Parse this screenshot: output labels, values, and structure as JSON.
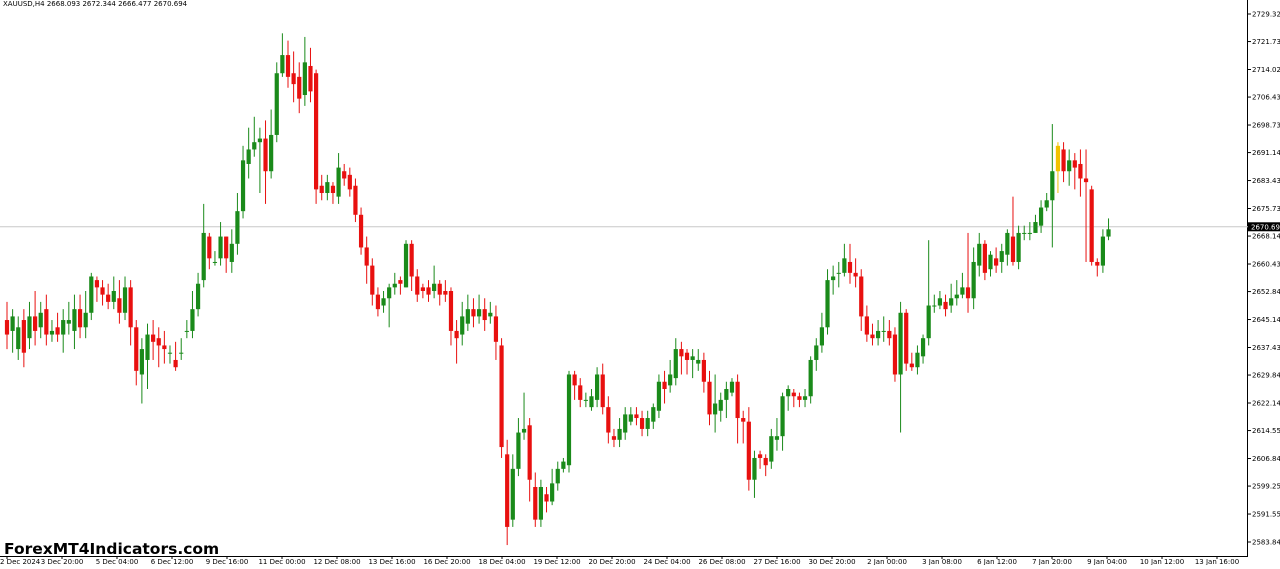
{
  "symbol_header": "XAUUSD,H4  2668.093 2672.344 2666.477 2670.694",
  "current_price_label": "2670.694",
  "watermark": "ForexMT4Indicators.com",
  "colors": {
    "background": "#ffffff",
    "bull": "#1a8a1a",
    "bear": "#e8100f",
    "highlight": "#f2c200",
    "price_line": "#c8c8c8",
    "price_tag_bg": "#000000"
  },
  "chart_data": {
    "type": "candlestick",
    "title": "",
    "ylim": [
      2580.0,
      2732.5
    ],
    "current_price": 2670.694,
    "y_ticks": [
      "2729.320",
      "2721.730",
      "2714.025",
      "2706.435",
      "2698.730",
      "2691.140",
      "2683.435",
      "2675.730",
      "2668.140",
      "2660.435",
      "2652.845",
      "2645.140",
      "2637.435",
      "2629.845",
      "2622.140",
      "2614.550",
      "2606.845",
      "2599.255",
      "2591.550",
      "2583.845"
    ],
    "x_ticks": [
      "2 Dec 2024",
      "3 Dec 20:00",
      "5 Dec 04:00",
      "6 Dec 12:00",
      "9 Dec 16:00",
      "11 Dec 00:00",
      "12 Dec 08:00",
      "13 Dec 16:00",
      "16 Dec 20:00",
      "18 Dec 04:00",
      "19 Dec 12:00",
      "20 Dec 20:00",
      "24 Dec 04:00",
      "26 Dec 08:00",
      "27 Dec 16:00",
      "30 Dec 20:00",
      "2 Jan 00:00",
      "3 Jan 08:00",
      "6 Jan 12:00",
      "7 Jan 20:00",
      "9 Jan 04:00",
      "10 Jan 12:00",
      "13 Jan 16:00"
    ],
    "candles": [
      [
        2645,
        2641,
        2650,
        2637
      ],
      [
        2642,
        2646,
        2648,
        2636
      ],
      [
        2637,
        2643,
        2646,
        2634
      ],
      [
        2645,
        2636,
        2648,
        2632
      ],
      [
        2640,
        2646,
        2650,
        2637
      ],
      [
        2646,
        2642,
        2653,
        2638
      ],
      [
        2643,
        2647,
        2650,
        2640
      ],
      [
        2648,
        2641,
        2652,
        2638
      ],
      [
        2641,
        2642,
        2645,
        2639
      ],
      [
        2643,
        2641,
        2647,
        2639
      ],
      [
        2641,
        2645,
        2648,
        2636
      ],
      [
        2644,
        2645,
        2650,
        2641
      ],
      [
        2642,
        2648,
        2652,
        2637
      ],
      [
        2648,
        2643,
        2652,
        2640
      ],
      [
        2643,
        2647,
        2653,
        2640
      ],
      [
        2647,
        2657,
        2658,
        2645
      ],
      [
        2656,
        2654,
        2657,
        2650
      ],
      [
        2654,
        2652,
        2656,
        2649
      ],
      [
        2652,
        2650,
        2655,
        2648
      ],
      [
        2650,
        2653,
        2657,
        2648
      ],
      [
        2651,
        2647,
        2656,
        2644
      ],
      [
        2647,
        2654,
        2657,
        2645
      ],
      [
        2654,
        2643,
        2656,
        2638
      ],
      [
        2643,
        2631,
        2645,
        2627
      ],
      [
        2630,
        2637,
        2640,
        2622
      ],
      [
        2634,
        2641,
        2644,
        2626
      ],
      [
        2641,
        2639,
        2645,
        2634
      ],
      [
        2640,
        2638,
        2643,
        2632
      ],
      [
        2638,
        2637,
        2642,
        2633
      ],
      [
        2636,
        2636,
        2638,
        2633
      ],
      [
        2634,
        2632,
        2639,
        2631
      ],
      [
        2636,
        2636,
        2640,
        2634
      ],
      [
        2642,
        2642,
        2645,
        2640
      ],
      [
        2642,
        2648,
        2653,
        2640
      ],
      [
        2648,
        2655,
        2658,
        2646
      ],
      [
        2656,
        2669,
        2677,
        2654
      ],
      [
        2668,
        2662,
        2669,
        2659
      ],
      [
        2661,
        2661,
        2664,
        2660
      ],
      [
        2662,
        2668,
        2672,
        2660
      ],
      [
        2668,
        2662,
        2668,
        2658
      ],
      [
        2661,
        2666,
        2670,
        2658
      ],
      [
        2666,
        2675,
        2680,
        2663
      ],
      [
        2675,
        2689,
        2693,
        2673
      ],
      [
        2688,
        2692,
        2698,
        2684
      ],
      [
        2692,
        2694,
        2701,
        2690
      ],
      [
        2694,
        2695,
        2698,
        2680
      ],
      [
        2695,
        2686,
        2700,
        2677
      ],
      [
        2686,
        2696,
        2703,
        2684
      ],
      [
        2696,
        2713,
        2716,
        2694
      ],
      [
        2713,
        2718,
        2724,
        2712
      ],
      [
        2718,
        2712,
        2722,
        2709
      ],
      [
        2713,
        2710,
        2719,
        2705
      ],
      [
        2712,
        2706,
        2716,
        2702
      ],
      [
        2707,
        2716,
        2723,
        2704
      ],
      [
        2715,
        2708,
        2720,
        2705
      ],
      [
        2713,
        2681,
        2714,
        2677
      ],
      [
        2682,
        2680,
        2685,
        2678
      ],
      [
        2680,
        2683,
        2685,
        2678
      ],
      [
        2682,
        2680,
        2683,
        2677
      ],
      [
        2679,
        2687,
        2691,
        2677
      ],
      [
        2686,
        2684,
        2688,
        2682
      ],
      [
        2685,
        2681,
        2687,
        2679
      ],
      [
        2682,
        2674,
        2684,
        2672
      ],
      [
        2674,
        2665,
        2676,
        2663
      ],
      [
        2665,
        2660,
        2668,
        2655
      ],
      [
        2660,
        2652,
        2662,
        2649
      ],
      [
        2652,
        2648,
        2654,
        2646
      ],
      [
        2649,
        2651,
        2653,
        2647
      ],
      [
        2651,
        2654,
        2655,
        2643
      ],
      [
        2654,
        2655,
        2658,
        2652
      ],
      [
        2656,
        2655,
        2657,
        2652
      ],
      [
        2654,
        2666,
        2667,
        2654
      ],
      [
        2666,
        2657,
        2667,
        2653
      ],
      [
        2657,
        2652,
        2659,
        2650
      ],
      [
        2654,
        2653,
        2655,
        2651
      ],
      [
        2654,
        2652,
        2656,
        2650
      ],
      [
        2653,
        2655,
        2660,
        2651
      ],
      [
        2655,
        2652,
        2656,
        2649
      ],
      [
        2653,
        2652,
        2656,
        2650
      ],
      [
        2653,
        2642,
        2654,
        2638
      ],
      [
        2642,
        2640,
        2645,
        2633
      ],
      [
        2641,
        2646,
        2650,
        2638
      ],
      [
        2644,
        2648,
        2652,
        2642
      ],
      [
        2648,
        2646,
        2651,
        2643
      ],
      [
        2646,
        2648,
        2652,
        2644
      ],
      [
        2648,
        2645,
        2651,
        2642
      ],
      [
        2646,
        2647,
        2650,
        2644
      ],
      [
        2646,
        2639,
        2649,
        2634
      ],
      [
        2638,
        2610,
        2640,
        2607
      ],
      [
        2608,
        2588,
        2612,
        2583
      ],
      [
        2590,
        2604,
        2608,
        2588
      ],
      [
        2604,
        2614,
        2618,
        2602
      ],
      [
        2614,
        2615,
        2625,
        2612
      ],
      [
        2616,
        2601,
        2618,
        2595
      ],
      [
        2599,
        2590,
        2603,
        2588
      ],
      [
        2590,
        2599,
        2601,
        2588
      ],
      [
        2597,
        2595,
        2599,
        2592
      ],
      [
        2595,
        2600,
        2604,
        2594
      ],
      [
        2600,
        2604,
        2606,
        2598
      ],
      [
        2604,
        2606,
        2607,
        2603
      ],
      [
        2605,
        2630,
        2631,
        2603
      ],
      [
        2630,
        2627,
        2631,
        2623
      ],
      [
        2627,
        2623,
        2629,
        2621
      ],
      [
        2623,
        2623,
        2625,
        2621
      ],
      [
        2621,
        2624,
        2626,
        2620
      ],
      [
        2623,
        2630,
        2632,
        2621
      ],
      [
        2630,
        2621,
        2633,
        2619
      ],
      [
        2621,
        2614,
        2624,
        2611
      ],
      [
        2613,
        2612,
        2615,
        2610
      ],
      [
        2612,
        2615,
        2618,
        2610
      ],
      [
        2614,
        2619,
        2621,
        2612
      ],
      [
        2617,
        2619,
        2621,
        2616
      ],
      [
        2619,
        2618,
        2621,
        2616
      ],
      [
        2618,
        2615,
        2620,
        2613
      ],
      [
        2615,
        2618,
        2620,
        2613
      ],
      [
        2617,
        2621,
        2622,
        2615
      ],
      [
        2620,
        2628,
        2630,
        2618
      ],
      [
        2628,
        2626,
        2631,
        2622
      ],
      [
        2627,
        2630,
        2634,
        2625
      ],
      [
        2629,
        2637,
        2640,
        2627
      ],
      [
        2637,
        2635,
        2639,
        2630
      ],
      [
        2636,
        2634,
        2637,
        2630
      ],
      [
        2634,
        2635,
        2637,
        2629
      ],
      [
        2633,
        2634,
        2637,
        2631
      ],
      [
        2634,
        2628,
        2636,
        2625
      ],
      [
        2628,
        2619,
        2631,
        2616
      ],
      [
        2619,
        2622,
        2630,
        2614
      ],
      [
        2620,
        2623,
        2625,
        2617
      ],
      [
        2623,
        2626,
        2628,
        2618
      ],
      [
        2625,
        2628,
        2629,
        2624
      ],
      [
        2628,
        2618,
        2630,
        2611
      ],
      [
        2618,
        2617,
        2620,
        2611
      ],
      [
        2617,
        2601,
        2621,
        2598
      ],
      [
        2601,
        2607,
        2609,
        2596
      ],
      [
        2608,
        2607,
        2609,
        2604
      ],
      [
        2607,
        2605,
        2608,
        2602
      ],
      [
        2606,
        2613,
        2615,
        2604
      ],
      [
        2612,
        2613,
        2618,
        2609
      ],
      [
        2613,
        2624,
        2625,
        2609
      ],
      [
        2624,
        2626,
        2627,
        2620
      ],
      [
        2625,
        2624,
        2626,
        2621
      ],
      [
        2624,
        2623,
        2625,
        2621
      ],
      [
        2623,
        2624,
        2626,
        2621
      ],
      [
        2624,
        2634,
        2635,
        2622
      ],
      [
        2634,
        2638,
        2640,
        2631
      ],
      [
        2638,
        2643,
        2647,
        2636
      ],
      [
        2643,
        2656,
        2659,
        2641
      ],
      [
        2656,
        2657,
        2660,
        2652
      ],
      [
        2658,
        2658,
        2661,
        2654
      ],
      [
        2658,
        2662,
        2666,
        2657
      ],
      [
        2661,
        2658,
        2666,
        2655
      ],
      [
        2658,
        2657,
        2662,
        2654
      ],
      [
        2657,
        2646,
        2659,
        2642
      ],
      [
        2646,
        2641,
        2649,
        2639
      ],
      [
        2641,
        2640,
        2644,
        2638
      ],
      [
        2640,
        2642,
        2645,
        2638
      ],
      [
        2642,
        2642,
        2646,
        2639
      ],
      [
        2642,
        2640,
        2645,
        2638
      ],
      [
        2641,
        2630,
        2643,
        2628
      ],
      [
        2630,
        2647,
        2650,
        2614
      ],
      [
        2647,
        2633,
        2648,
        2631
      ],
      [
        2633,
        2632,
        2636,
        2631
      ],
      [
        2632,
        2636,
        2638,
        2630
      ],
      [
        2635,
        2640,
        2641,
        2633
      ],
      [
        2640,
        2649,
        2667,
        2638
      ],
      [
        2649,
        2649,
        2652,
        2647
      ],
      [
        2649,
        2651,
        2653,
        2648
      ],
      [
        2650,
        2648,
        2652,
        2646
      ],
      [
        2649,
        2651,
        2655,
        2647
      ],
      [
        2651,
        2652,
        2656,
        2649
      ],
      [
        2652,
        2654,
        2658,
        2651
      ],
      [
        2654,
        2651,
        2669,
        2647
      ],
      [
        2651,
        2661,
        2665,
        2648
      ],
      [
        2660,
        2666,
        2669,
        2657
      ],
      [
        2666,
        2658,
        2667,
        2656
      ],
      [
        2659,
        2663,
        2664,
        2657
      ],
      [
        2662,
        2660,
        2665,
        2658
      ],
      [
        2661,
        2664,
        2666,
        2658
      ],
      [
        2663,
        2669,
        2670,
        2660
      ],
      [
        2668,
        2661,
        2679,
        2660
      ],
      [
        2661,
        2669,
        2671,
        2659
      ],
      [
        2669,
        2669,
        2671,
        2667
      ],
      [
        2669,
        2669,
        2672,
        2667
      ],
      [
        2669,
        2672,
        2674,
        2669
      ],
      [
        2671,
        2676,
        2678,
        2669
      ],
      [
        2676,
        2678,
        2680,
        2675
      ],
      [
        2678,
        2686,
        2699,
        2665
      ],
      [
        2686,
        2693,
        2694,
        2680
      ],
      [
        2692,
        2686,
        2694,
        2683
      ],
      [
        2686,
        2689,
        2692,
        2682
      ],
      [
        2689,
        2687,
        2691,
        2681
      ],
      [
        2688,
        2684,
        2692,
        2679
      ],
      [
        2684,
        2683,
        2692,
        2661
      ],
      [
        2681,
        2661,
        2682,
        2660
      ],
      [
        2661,
        2660,
        2662,
        2657
      ],
      [
        2660,
        2668,
        2670,
        2658
      ],
      [
        2668,
        2670,
        2673,
        2667
      ]
    ],
    "highlight_candles": [
      187,
      203,
      208,
      214,
      222,
      225
    ]
  }
}
